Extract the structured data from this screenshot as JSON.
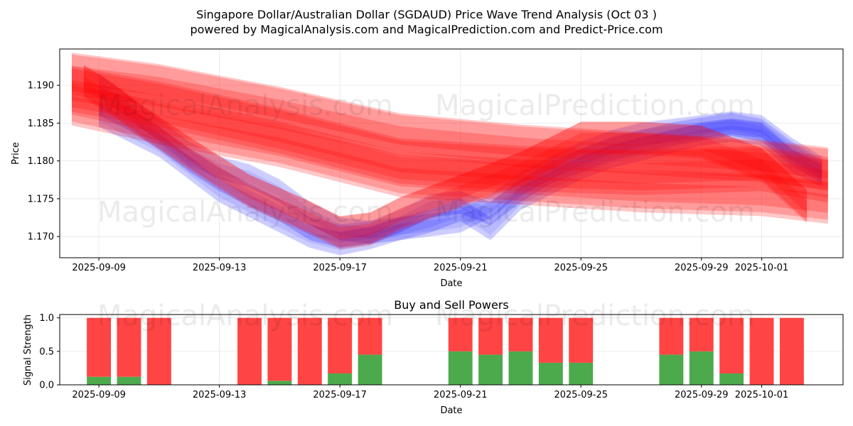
{
  "title_line1": "Singapore Dollar/Australian Dollar (SGDAUD) Price Wave Trend Analysis (Oct 03 )",
  "title_line2": "powered by MagicalAnalysis.com and MagicalPrediction.com and Predict-Price.com",
  "watermarks": [
    "MagicalAnalysis.com",
    "MagicalPrediction.com"
  ],
  "chart_data": [
    {
      "type": "area",
      "name": "price-wave",
      "title": "",
      "xlabel": "Date",
      "ylabel": "Price",
      "ylim": [
        1.1672,
        1.1948
      ],
      "xlim_days": [
        -1.3,
        24.7
      ],
      "x_tick_labels": [
        "2025-09-09",
        "2025-09-13",
        "2025-09-17",
        "2025-09-21",
        "2025-09-25",
        "2025-09-29",
        "2025-10-01"
      ],
      "x_tick_days": [
        0,
        4,
        8,
        12,
        16,
        20,
        22
      ],
      "y_ticks": [
        1.17,
        1.175,
        1.18,
        1.185,
        1.19
      ],
      "y_tick_labels": [
        "1.170",
        "1.175",
        "1.180",
        "1.185",
        "1.190"
      ],
      "grid": true,
      "start_date": "2025-09-09",
      "colors": {
        "red": "#ff0000",
        "blue": "#0000ff"
      },
      "series": [
        {
          "name": "red-upper",
          "color": "red",
          "days": [
            -0.9,
            2,
            6,
            10,
            14,
            18,
            22,
            24.2
          ],
          "values": [
            1.1915,
            1.19,
            1.187,
            1.1835,
            1.182,
            1.181,
            1.18,
            1.179
          ],
          "halfwidth": 0.0028
        },
        {
          "name": "red-mid",
          "color": "red",
          "days": [
            -0.9,
            2,
            6,
            10,
            14,
            18,
            22,
            24.2
          ],
          "values": [
            1.1895,
            1.1875,
            1.184,
            1.18,
            1.179,
            1.1785,
            1.179,
            1.1775
          ],
          "halfwidth": 0.003
        },
        {
          "name": "red-lower",
          "color": "red",
          "days": [
            -0.9,
            2,
            6,
            10,
            14,
            18,
            22,
            24.2
          ],
          "values": [
            1.1875,
            1.185,
            1.182,
            1.178,
            1.177,
            1.176,
            1.1755,
            1.1745
          ],
          "halfwidth": 0.0028
        },
        {
          "name": "red-dip",
          "color": "red",
          "days": [
            -0.5,
            0.5,
            1.5,
            3,
            5,
            7,
            8,
            9,
            10,
            12,
            14,
            15,
            16,
            18,
            20,
            22,
            23.5
          ],
          "values": [
            1.1905,
            1.188,
            1.185,
            1.181,
            1.176,
            1.1725,
            1.1705,
            1.171,
            1.173,
            1.176,
            1.179,
            1.181,
            1.183,
            1.183,
            1.1825,
            1.1795,
            1.174
          ],
          "halfwidth": 0.0022
        },
        {
          "name": "blue-1",
          "color": "blue",
          "days": [
            0,
            1,
            2,
            3,
            4,
            5,
            6,
            7,
            8,
            9,
            10,
            11,
            12,
            13,
            14,
            15,
            16,
            17,
            18,
            19,
            20,
            21,
            22,
            23,
            24
          ],
          "values": [
            1.19,
            1.187,
            1.184,
            1.181,
            1.179,
            1.178,
            1.176,
            1.173,
            1.171,
            1.1705,
            1.171,
            1.1715,
            1.172,
            1.174,
            1.177,
            1.179,
            1.181,
            1.1825,
            1.1835,
            1.184,
            1.1845,
            1.185,
            1.1845,
            1.1815,
            1.179
          ],
          "halfwidth": 0.0015
        },
        {
          "name": "blue-2",
          "color": "blue",
          "days": [
            0,
            1,
            2,
            3,
            4,
            5,
            6,
            7,
            8,
            9,
            10,
            11,
            12,
            13,
            14,
            15,
            16,
            17,
            18,
            19,
            20,
            21,
            22,
            23,
            24
          ],
          "values": [
            1.1875,
            1.1855,
            1.183,
            1.18,
            1.1775,
            1.1755,
            1.1735,
            1.171,
            1.17,
            1.1705,
            1.172,
            1.174,
            1.1745,
            1.173,
            1.176,
            1.1785,
            1.18,
            1.1815,
            1.1825,
            1.1835,
            1.1842,
            1.1848,
            1.184,
            1.181,
            1.1785
          ],
          "halfwidth": 0.0015
        },
        {
          "name": "blue-3",
          "color": "blue",
          "days": [
            0,
            1,
            2,
            3,
            4,
            5,
            6,
            7,
            8,
            9,
            10,
            11,
            12,
            13,
            14,
            15,
            16,
            17,
            18,
            19,
            20,
            21,
            22,
            23,
            24
          ],
          "values": [
            1.186,
            1.184,
            1.182,
            1.179,
            1.176,
            1.174,
            1.172,
            1.17,
            1.169,
            1.1698,
            1.171,
            1.172,
            1.1735,
            1.171,
            1.175,
            1.177,
            1.179,
            1.1805,
            1.1815,
            1.1825,
            1.1835,
            1.184,
            1.1835,
            1.18,
            1.178
          ],
          "halfwidth": 0.0015
        }
      ]
    },
    {
      "type": "bar",
      "name": "buy-sell-powers",
      "title": "Buy and Sell Powers",
      "xlabel": "Date",
      "ylabel": "Signal Strength",
      "ylim": [
        0,
        1.05
      ],
      "y_ticks": [
        0.0,
        0.5,
        1.0
      ],
      "y_tick_labels": [
        "0.0",
        "0.5",
        "1.0"
      ],
      "x_tick_labels": [
        "2025-09-09",
        "2025-09-13",
        "2025-09-17",
        "2025-09-21",
        "2025-09-25",
        "2025-09-29",
        "2025-10-01"
      ],
      "x_tick_days": [
        0,
        4,
        8,
        12,
        16,
        20,
        22
      ],
      "xlim_days": [
        -1.3,
        24.7
      ],
      "grid": true,
      "colors": {
        "buy": "#4caa4c",
        "sell": "#ff4444"
      },
      "days": [
        0,
        1,
        2,
        5,
        6,
        7,
        8,
        9,
        12,
        13,
        14,
        15,
        16,
        19,
        20,
        21,
        22,
        23
      ],
      "buy": [
        0.12,
        0.12,
        0.0,
        0.0,
        0.06,
        0.0,
        0.17,
        0.45,
        0.5,
        0.45,
        0.5,
        0.33,
        0.33,
        0.45,
        0.5,
        0.17,
        0.0,
        0.0
      ],
      "sell": [
        0.88,
        0.88,
        1.0,
        1.0,
        0.94,
        1.0,
        0.83,
        0.55,
        0.5,
        0.55,
        0.5,
        0.67,
        0.67,
        0.55,
        0.5,
        0.83,
        1.0,
        1.0
      ]
    }
  ]
}
